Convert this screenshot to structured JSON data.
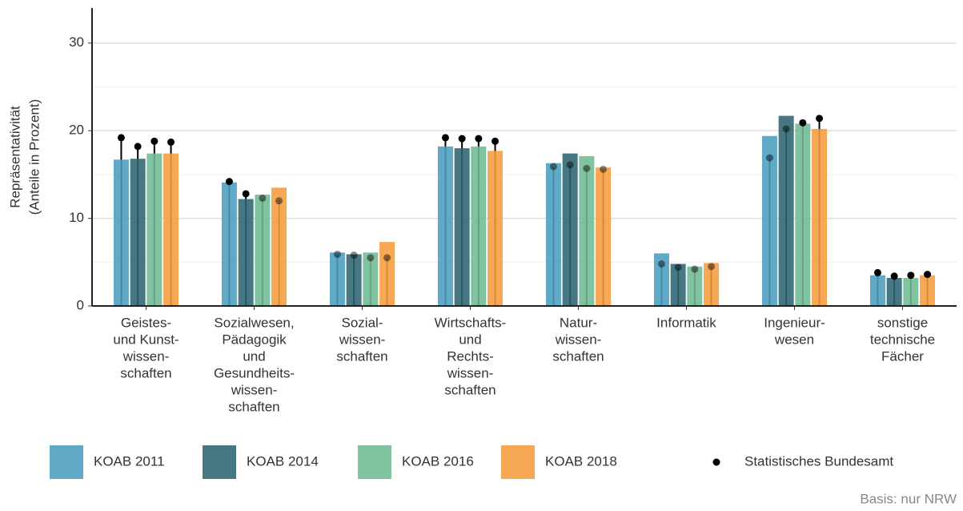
{
  "chart_data": {
    "type": "bar",
    "ylabel": [
      "Repräsentativität",
      "(Anteile in Prozent)"
    ],
    "caption": "Basis: nur NRW",
    "categories": [
      [
        "Geistes-",
        "und Kunst-",
        "wissen-",
        "schaften"
      ],
      [
        "Sozialwesen,",
        "Pädagogik",
        "und",
        "Gesundheits-",
        "wissen-",
        "schaften"
      ],
      [
        "Sozial-",
        "wissen-",
        "schaften"
      ],
      [
        "Wirtschafts-",
        "und",
        "Rechts-",
        "wissen-",
        "schaften"
      ],
      [
        "Natur-",
        "wissen-",
        "schaften"
      ],
      [
        "Informatik"
      ],
      [
        "Ingenieur-",
        "wesen"
      ],
      [
        "sonstige",
        "technische",
        "Fächer"
      ]
    ],
    "series": [
      {
        "name": "KOAB 2011",
        "color": "#4a9dbf",
        "values": [
          16.7,
          14.1,
          6.1,
          18.2,
          16.3,
          6.0,
          19.4,
          3.5
        ],
        "reference": [
          19.2,
          14.2,
          5.9,
          19.2,
          15.9,
          4.8,
          16.9,
          3.8
        ]
      },
      {
        "name": "KOAB 2014",
        "color": "#2e6472",
        "values": [
          16.8,
          12.2,
          5.9,
          18.0,
          17.4,
          4.8,
          21.7,
          3.2
        ],
        "reference": [
          18.2,
          12.8,
          5.8,
          19.1,
          16.1,
          4.4,
          20.2,
          3.4
        ]
      },
      {
        "name": "KOAB 2016",
        "color": "#6fba93",
        "values": [
          17.4,
          12.7,
          6.1,
          18.2,
          17.1,
          4.5,
          20.8,
          3.2
        ],
        "reference": [
          18.8,
          12.3,
          5.5,
          19.1,
          15.7,
          4.2,
          20.9,
          3.5
        ]
      },
      {
        "name": "KOAB 2018",
        "color": "#f59c3c",
        "values": [
          17.4,
          13.5,
          7.3,
          17.7,
          15.8,
          4.9,
          20.2,
          3.5
        ],
        "reference": [
          18.7,
          12.0,
          5.5,
          18.8,
          15.6,
          4.5,
          21.4,
          3.6
        ]
      }
    ],
    "reference_name": "Statistisches Bundesamt",
    "reference_color": "#000000",
    "ylim": [
      0,
      34
    ],
    "yticks": [
      0,
      10,
      20,
      30
    ],
    "yticks_minor": [
      5,
      15,
      25
    ],
    "grid": true
  }
}
